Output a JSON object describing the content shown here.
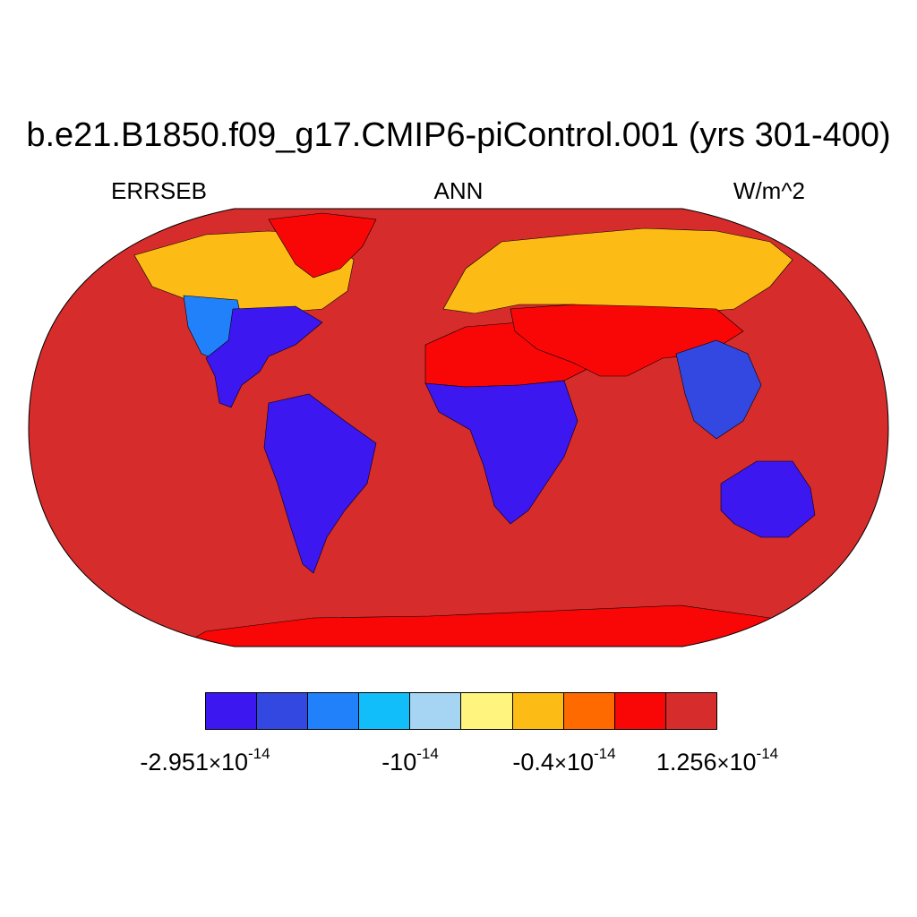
{
  "title": "b.e21.B1850.f09_g17.CMIP6-piControl.001 (yrs 301-400)",
  "left_label": "ERRSEB",
  "center_label": "ANN",
  "right_label": "W/m^2",
  "colorbar": {
    "colors": [
      "#3c17f0",
      "#3348e0",
      "#2181fa",
      "#12befa",
      "#a5d5f2",
      "#fff57e",
      "#fdbb15",
      "#fe6a00",
      "#f90707",
      "#d62c2c"
    ],
    "labels": [
      {
        "mantissa": "-2.951",
        "times": "×",
        "base": "10",
        "exponent": "-14"
      },
      {
        "mantissa": "",
        "times": "",
        "base": "-10",
        "exponent": "-14"
      },
      {
        "mantissa": "-0.4",
        "times": "×",
        "base": "10",
        "exponent": "-14"
      },
      {
        "mantissa": "1.256",
        "times": "×",
        "base": "10",
        "exponent": "-14"
      }
    ]
  },
  "map": {
    "ocean_color": "#d62c2c",
    "continents": [
      {
        "name": "north-america-west",
        "color": "#2181fa"
      },
      {
        "name": "north-america-north",
        "color": "#fdbb15"
      },
      {
        "name": "north-america-east",
        "color": "#3c17f0"
      },
      {
        "name": "greenland",
        "color": "#f90707"
      },
      {
        "name": "south-america",
        "color": "#3c17f0"
      },
      {
        "name": "africa-north",
        "color": "#f90707"
      },
      {
        "name": "africa-south",
        "color": "#3c17f0"
      },
      {
        "name": "eurasia",
        "color": "#fdbb15"
      },
      {
        "name": "central-asia",
        "color": "#f90707"
      },
      {
        "name": "southeast-asia",
        "color": "#3348e0"
      },
      {
        "name": "australia",
        "color": "#3c17f0"
      },
      {
        "name": "antarctica",
        "color": "#f90707"
      }
    ]
  }
}
